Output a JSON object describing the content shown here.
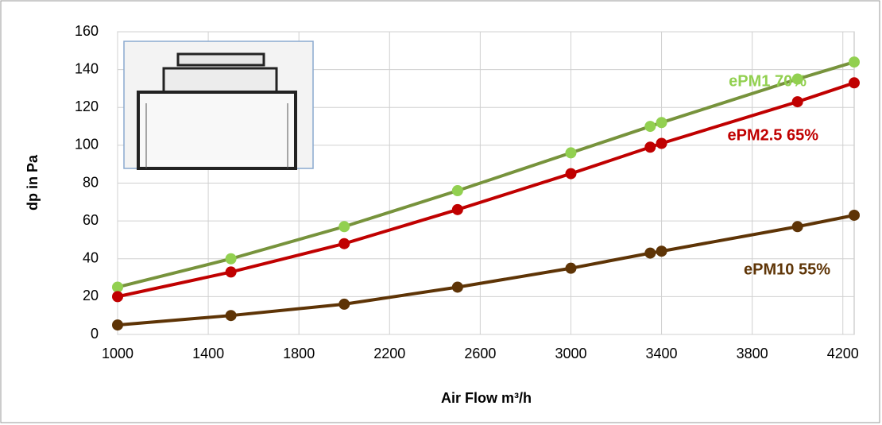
{
  "chart_data": {
    "type": "line",
    "x_label": "Air Flow m³/h",
    "y_label": "dp in Pa",
    "x": [
      1000,
      1500,
      2000,
      2500,
      3000,
      3350,
      3400,
      4000,
      4250
    ],
    "series": [
      {
        "name": "ePM1 70%",
        "color": "#77933c",
        "marker_color": "#92d050",
        "values": [
          25,
          40,
          57,
          76,
          96,
          110,
          112,
          135,
          144
        ]
      },
      {
        "name": "ePM2.5 65%",
        "color": "#c00000",
        "marker_color": "#c00000",
        "values": [
          20,
          33,
          48,
          66,
          85,
          99,
          101,
          123,
          133
        ]
      },
      {
        "name": "ePM10 55%",
        "color": "#5e3406",
        "marker_color": "#5e3406",
        "values": [
          5,
          10,
          16,
          25,
          35,
          43,
          44,
          57,
          63
        ]
      }
    ],
    "xlim": [
      1000,
      4250
    ],
    "ylim": [
      0,
      160
    ],
    "xticks": [
      1000,
      1400,
      1800,
      2200,
      2600,
      3000,
      3400,
      3800,
      4200
    ],
    "yticks": [
      0,
      20,
      40,
      60,
      80,
      100,
      120,
      140,
      160
    ],
    "grid": true
  }
}
